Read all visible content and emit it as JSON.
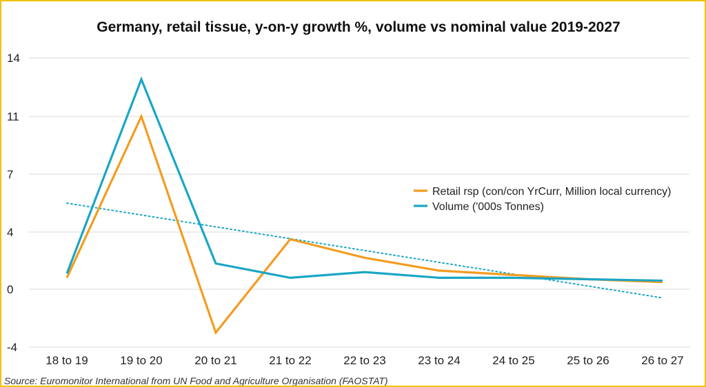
{
  "chart_data": {
    "type": "line",
    "title": "Germany, retail tissue, y-on-y growth %, volume vs nominal value 2019-2027",
    "xlabel": "",
    "ylabel": "",
    "categories": [
      "18 to 19",
      "19 to 20",
      "20 to 21",
      "21 to 22",
      "22 to 23",
      "23 to 24",
      "24 to 25",
      "25 to 26",
      "26 to 27"
    ],
    "y_ticks": [
      -4,
      0,
      4,
      7,
      11,
      14
    ],
    "series": [
      {
        "name": "Retail rsp (con/con YrCurr, Million local currency)",
        "color": "#f39c1f",
        "values": [
          0.8,
          11.0,
          -3.0,
          3.5,
          2.2,
          1.3,
          1.0,
          0.7,
          0.5
        ]
      },
      {
        "name": "Volume ('000s Tonnes)",
        "color": "#1aa6c4",
        "values": [
          1.1,
          12.9,
          1.8,
          0.8,
          1.2,
          0.8,
          0.8,
          0.7,
          0.6
        ]
      }
    ],
    "trendline": {
      "series": "Volume ('000s Tonnes)",
      "style": "dotted",
      "color": "#1aa6c4",
      "start": 5.5,
      "end": -0.6
    },
    "grid": true,
    "legend_position": "right"
  },
  "source": "Source: Euromonitor International from UN Food and Agriculture Organisation (FAOSTAT)"
}
